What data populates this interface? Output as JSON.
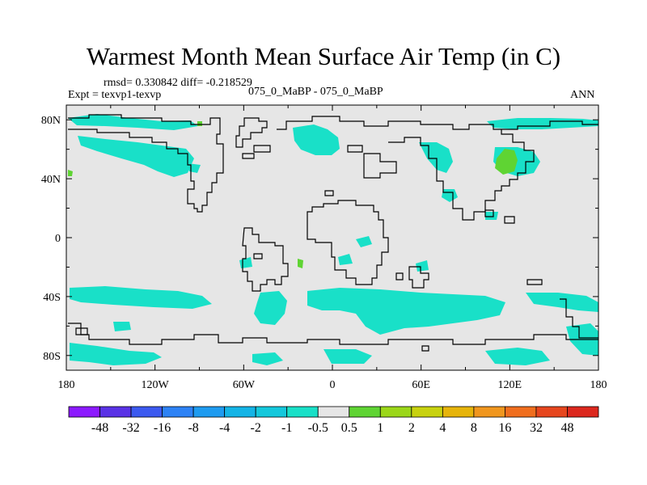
{
  "title": "Warmest Month Mean Surface Air Temp (in C)",
  "stats": "rmsd= 0.330842 diff= -0.218529",
  "left_label": "Expt = texvp1-texvp",
  "center_label": "075_0_MaBP - 075_0_MaBP",
  "right_label": "ANN",
  "colors": {
    "land_background": "#e6e6e6",
    "frame": "#000000",
    "cyan_anomaly": "#19e0c8",
    "green_anomaly": "#5fd433"
  },
  "map": {
    "projection": "cylindrical-equidistant",
    "lon_range": [
      -180,
      180
    ],
    "lat_range": [
      -90,
      90
    ],
    "x_tick_labels": [
      "180",
      "120W",
      "60W",
      "0",
      "60E",
      "120E",
      "180"
    ],
    "y_tick_labels": [
      "80N",
      "40N",
      "0",
      "40S",
      "80S"
    ]
  },
  "colorbar": {
    "labels": [
      "-48",
      "-32",
      "-16",
      "-8",
      "-4",
      "-2",
      "-1",
      "-0.5",
      "0.5",
      "1",
      "2",
      "4",
      "8",
      "16",
      "32",
      "48"
    ],
    "colors": [
      "#8c1aff",
      "#5a32e6",
      "#3c5af0",
      "#2d82f5",
      "#1e9bf0",
      "#14b4e6",
      "#14c8dc",
      "#19e0c8",
      "#e6e6e6",
      "#5fd433",
      "#9bd719",
      "#c8d20f",
      "#e6b40a",
      "#f0961e",
      "#f06e1e",
      "#e6461e",
      "#dc281e"
    ]
  }
}
